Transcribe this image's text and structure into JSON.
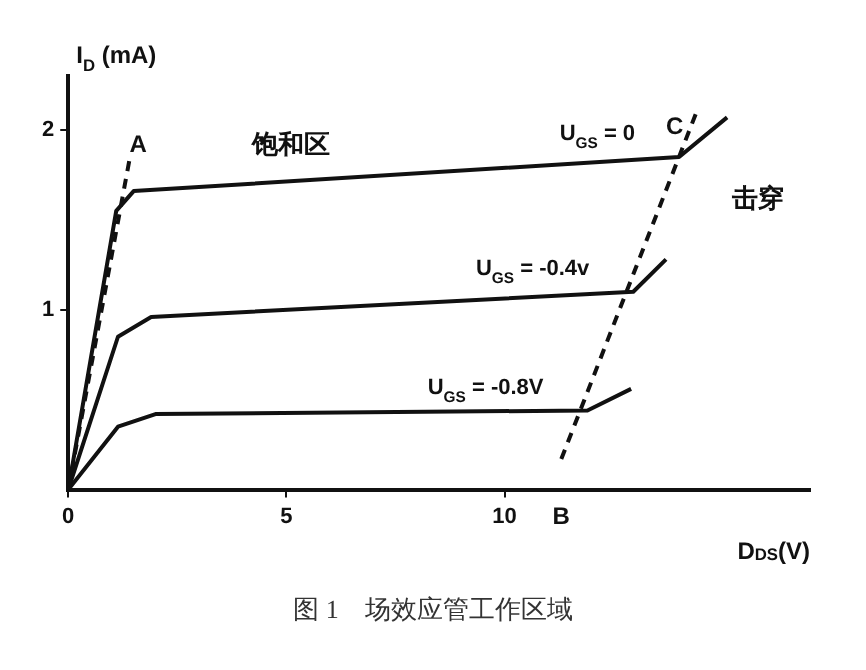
{
  "chart_data": {
    "type": "line",
    "xlabel": "D$_{DS}$(V)",
    "ylabel": "I$_{D}$ (mA)",
    "xlim": [
      0,
      17
    ],
    "ylim": [
      0,
      2.3
    ],
    "xticks": [
      0,
      5,
      10
    ],
    "yticks": [
      1,
      2
    ],
    "grid": false,
    "legend": false,
    "marker": "none",
    "series": [
      {
        "name": "U$_{GS}$ = 0",
        "color": "#111111",
        "x": [
          0,
          1.1,
          1.5,
          14.0,
          15.1
        ],
        "values": [
          0,
          1.55,
          1.66,
          1.85,
          2.07
        ]
      },
      {
        "name": "U$_{GS}$ = -0.4v",
        "color": "#111111",
        "x": [
          0,
          1.14,
          1.9,
          12.95,
          13.7
        ],
        "values": [
          0,
          0.85,
          0.96,
          1.1,
          1.28
        ]
      },
      {
        "name": "U$_{GS}$ = -0.8V",
        "color": "#111111",
        "x": [
          0,
          1.14,
          2.0,
          11.9,
          12.9
        ],
        "values": [
          0,
          0.35,
          0.42,
          0.44,
          0.56
        ]
      },
      {
        "color": "#111111",
        "line_style": "dashed",
        "x": [
          0,
          1.4
        ],
        "values": [
          0,
          1.83
        ]
      },
      {
        "color": "#111111",
        "line_style": "dashed",
        "x": [
          11.3,
          14.4
        ],
        "values": [
          0.17,
          2.1
        ]
      }
    ],
    "annotations": [
      {
        "text": "A",
        "x": 1.6,
        "y": 1.85
      },
      "饱和区",
      {
        "text": "C",
        "x": 13.9,
        "y": 1.95
      },
      "击穿",
      {
        "text": "B",
        "x": 11.3,
        "y": 0.17
      },
      "图 1　场效应管工作区域"
    ]
  }
}
